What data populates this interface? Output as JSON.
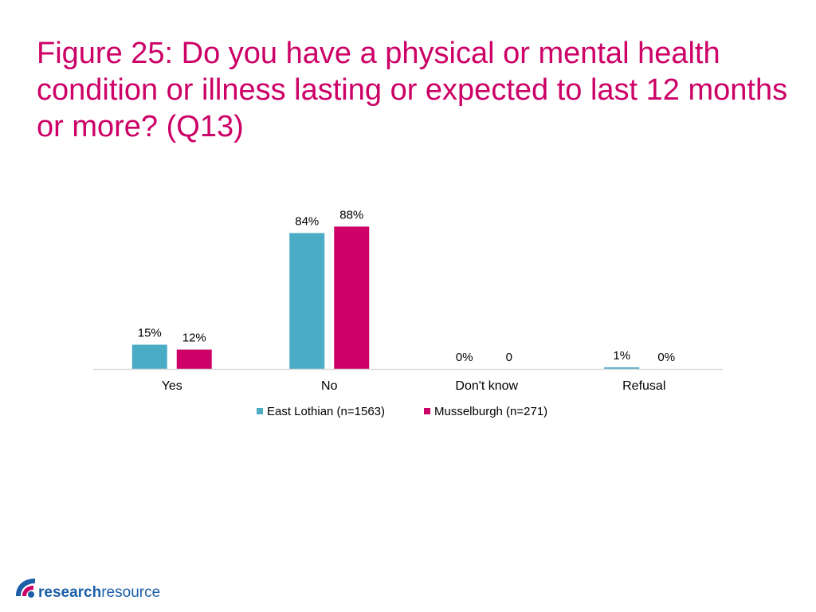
{
  "title": "Figure 25: Do you have a physical or mental health condition or illness lasting or expected to last 12 months or more? (Q13)",
  "colors": {
    "title": "#cc0066",
    "series_1": "#4bacc6",
    "series_2": "#cc0066",
    "axis": "#d9d9d9"
  },
  "chart_data": {
    "type": "bar",
    "categories": [
      "Yes",
      "No",
      "Don't know",
      "Refusal"
    ],
    "series": [
      {
        "name": "East Lothian (n=1563)",
        "values": [
          15,
          84,
          0,
          1
        ],
        "labels": [
          "15%",
          "84%",
          "0%",
          "1%"
        ]
      },
      {
        "name": "Musselburgh (n=271)",
        "values": [
          12,
          88,
          0,
          0
        ],
        "labels": [
          "12%",
          "88%",
          "0",
          "0%"
        ]
      }
    ],
    "ylim": [
      0,
      100
    ],
    "grid": false,
    "legend": "bottom"
  },
  "logo": {
    "text_bold": "research",
    "text_regular": "resource",
    "icon": "research-resource-logo-icon"
  }
}
